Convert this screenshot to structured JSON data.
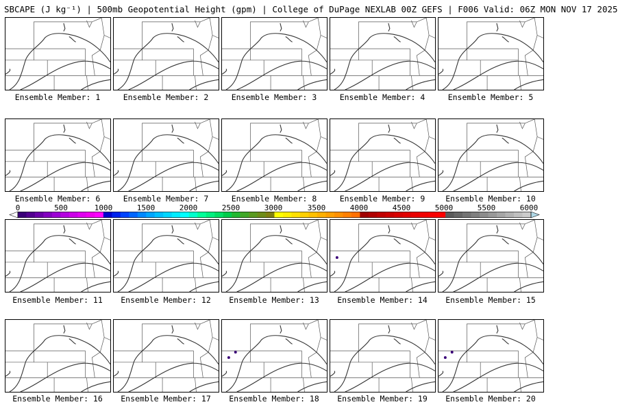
{
  "header": {
    "title": "SBCAPE (J kg⁻¹) | 500mb Geopotential Height (gpm) | College of DuPage NEXLAB 00Z GEFS | F006 Valid: 06Z MON NOV 17 2025"
  },
  "colorbar": {
    "labels": [
      "0",
      "500",
      "1000",
      "1500",
      "2000",
      "2500",
      "3000",
      "3500",
      "4000",
      "4500",
      "5000",
      "5500",
      "6000"
    ],
    "colors": [
      "#ffffff",
      "#3a0078",
      "#52008f",
      "#6a00a8",
      "#8300c0",
      "#9c00d4",
      "#b400e0",
      "#cc00e8",
      "#e000f0",
      "#f000f0",
      "#ff00ff",
      "#0000cc",
      "#0022ee",
      "#0044ff",
      "#0066ff",
      "#0088ff",
      "#00a6ff",
      "#00c0ff",
      "#00d6ff",
      "#00ecff",
      "#00ffff",
      "#00ffcc",
      "#00ff99",
      "#00f080",
      "#00e066",
      "#00cc4c",
      "#22b833",
      "#40a828",
      "#5a9a20",
      "#6e8c18",
      "#808010",
      "#ffff00",
      "#fff000",
      "#ffe000",
      "#ffd000",
      "#ffc000",
      "#ffb000",
      "#ffa000",
      "#ff9000",
      "#ff8000",
      "#ff7000",
      "#a00000",
      "#b00000",
      "#c00000",
      "#cc0000",
      "#d80000",
      "#e20000",
      "#ea0000",
      "#f20000",
      "#f80000",
      "#ff0000",
      "#5a5a5a",
      "#666666",
      "#737373",
      "#808080",
      "#8c8c8c",
      "#999999",
      "#a6a6a6",
      "#b3b3b3",
      "#c0c0c0",
      "#cccccc",
      "#b0d8e6"
    ]
  },
  "members": [
    {
      "label": "Ensemble Member: 1",
      "cape_spots": []
    },
    {
      "label": "Ensemble Member: 2",
      "cape_spots": []
    },
    {
      "label": "Ensemble Member: 3",
      "cape_spots": []
    },
    {
      "label": "Ensemble Member: 4",
      "cape_spots": []
    },
    {
      "label": "Ensemble Member: 5",
      "cape_spots": []
    },
    {
      "label": "Ensemble Member: 6",
      "cape_spots": []
    },
    {
      "label": "Ensemble Member: 7",
      "cape_spots": []
    },
    {
      "label": "Ensemble Member: 8",
      "cape_spots": []
    },
    {
      "label": "Ensemble Member: 9",
      "cape_spots": []
    },
    {
      "label": "Ensemble Member: 10",
      "cape_spots": []
    },
    {
      "label": "Ensemble Member: 11",
      "cape_spots": []
    },
    {
      "label": "Ensemble Member: 12",
      "cape_spots": []
    },
    {
      "label": "Ensemble Member: 13",
      "cape_spots": []
    },
    {
      "label": "Ensemble Member: 14",
      "cape_spots": [
        {
          "color": "#3a0078"
        }
      ]
    },
    {
      "label": "Ensemble Member: 15",
      "cape_spots": []
    },
    {
      "label": "Ensemble Member: 16",
      "cape_spots": []
    },
    {
      "label": "Ensemble Member: 17",
      "cape_spots": []
    },
    {
      "label": "Ensemble Member: 18",
      "cape_spots": [
        {
          "color": "#3a0078"
        },
        {
          "color": "#3a0078"
        }
      ]
    },
    {
      "label": "Ensemble Member: 19",
      "cape_spots": []
    },
    {
      "label": "Ensemble Member: 20",
      "cape_spots": [
        {
          "color": "#3a0078"
        },
        {
          "color": "#3a0078"
        }
      ]
    }
  ]
}
